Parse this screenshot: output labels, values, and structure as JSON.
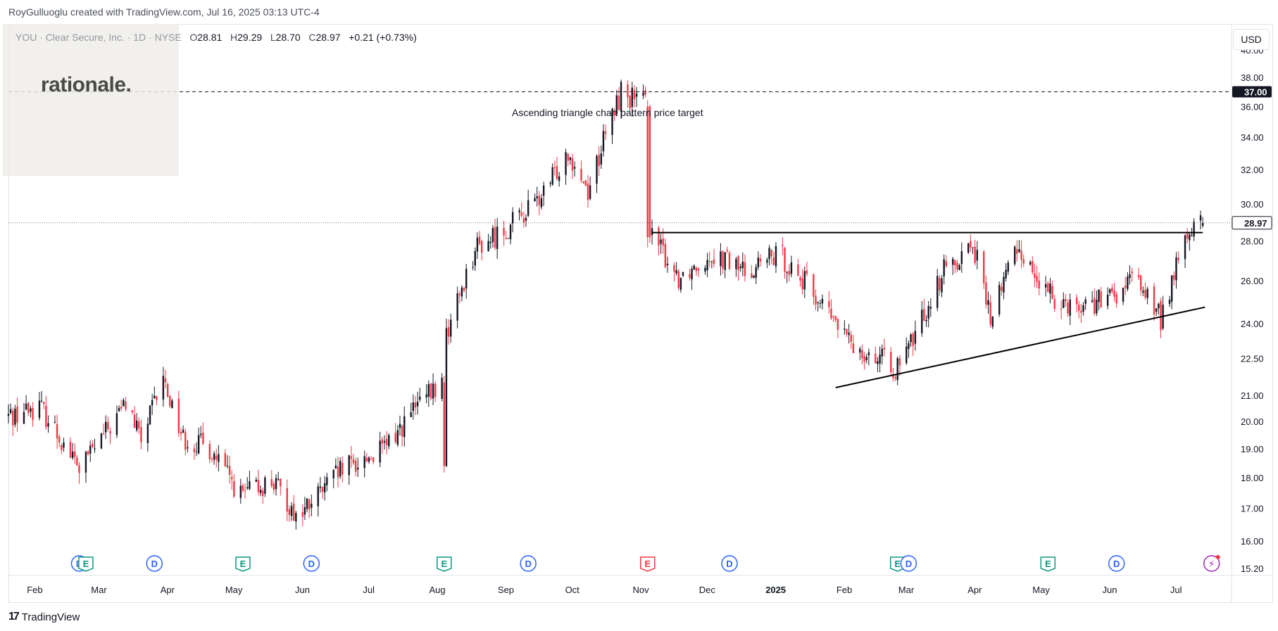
{
  "creator_text": "RoyGulluoglu created with TradingView.com, Jul 16, 2025 03:13 UTC-4",
  "legend": {
    "symbol_line": "YOU · Clear Secure, Inc. · 1D · NYSE",
    "open_label": "O",
    "open": "28.81",
    "high_label": "H",
    "high": "29.29",
    "low_label": "L",
    "low": "28.70",
    "close_label": "C",
    "close": "28.97",
    "change": "+0.21 (+0.73%)"
  },
  "logo_text": "rationale.",
  "brand_text": "TradingView",
  "currency_button": "USD",
  "annotation": "Ascending triangle chart pattern price target",
  "colors": {
    "up": "#131722",
    "down": "#f23645",
    "event_blue": "#2962ff",
    "event_green": "#089981",
    "event_red": "#f23645",
    "event_purple": "#9c27b0"
  },
  "chart_data": {
    "type": "candlestick",
    "y_scale": "log",
    "ylim": [
      15.0,
      42.0
    ],
    "y_ticks": [
      "40.00",
      "38.00",
      "36.00",
      "34.00",
      "32.00",
      "30.00",
      "28.00",
      "26.00",
      "24.00",
      "22.50",
      "21.00",
      "20.00",
      "19.00",
      "18.00",
      "17.00",
      "16.00",
      "15.20"
    ],
    "x_ticks": [
      "Feb",
      "Mar",
      "Apr",
      "May",
      "Jun",
      "Jul",
      "Aug",
      "Sep",
      "Oct",
      "Nov",
      "Dec",
      "2025",
      "Feb",
      "Mar",
      "Apr",
      "May",
      "Jun",
      "Jul"
    ],
    "x_tick_bold": [
      false,
      false,
      false,
      false,
      false,
      false,
      false,
      false,
      false,
      false,
      false,
      true,
      false,
      false,
      false,
      false,
      false,
      false
    ],
    "x_range": [
      "2024-01-22",
      "2025-07-28"
    ],
    "price_labels": [
      {
        "value": "37.00",
        "style": "dark"
      },
      {
        "value": "28.97",
        "style": "outline"
      }
    ],
    "key_points": [
      {
        "date": "2024-01-22",
        "close": 20.2
      },
      {
        "date": "2024-02-05",
        "close": 20.6
      },
      {
        "date": "2024-02-23",
        "close": 18.3
      },
      {
        "date": "2024-03-08",
        "close": 19.8
      },
      {
        "date": "2024-03-15",
        "close": 20.7
      },
      {
        "date": "2024-03-22",
        "close": 19.3
      },
      {
        "date": "2024-04-01",
        "close": 21.6
      },
      {
        "date": "2024-04-10",
        "close": 19.4
      },
      {
        "date": "2024-04-22",
        "close": 19.0
      },
      {
        "date": "2024-05-06",
        "close": 17.4
      },
      {
        "date": "2024-05-20",
        "close": 17.9
      },
      {
        "date": "2024-06-01",
        "close": 16.7
      },
      {
        "date": "2024-06-20",
        "close": 18.2
      },
      {
        "date": "2024-07-10",
        "close": 19.0
      },
      {
        "date": "2024-07-25",
        "close": 20.6
      },
      {
        "date": "2024-08-06",
        "close": 21.5
      },
      {
        "date": "2024-08-07",
        "close": 18.4
      },
      {
        "date": "2024-08-08",
        "close": 23.8
      },
      {
        "date": "2024-08-20",
        "close": 27.6
      },
      {
        "date": "2024-09-05",
        "close": 28.8
      },
      {
        "date": "2024-09-20",
        "close": 30.5
      },
      {
        "date": "2024-10-01",
        "close": 33.2
      },
      {
        "date": "2024-10-10",
        "close": 30.8
      },
      {
        "date": "2024-10-25",
        "close": 37.0
      },
      {
        "date": "2024-11-06",
        "close": 36.0
      },
      {
        "date": "2024-11-08",
        "close": 28.2
      },
      {
        "date": "2024-11-20",
        "close": 26.2
      },
      {
        "date": "2024-12-05",
        "close": 27.4
      },
      {
        "date": "2024-12-20",
        "close": 26.5
      },
      {
        "date": "2025-01-05",
        "close": 27.3
      },
      {
        "date": "2025-01-20",
        "close": 25.4
      },
      {
        "date": "2025-02-05",
        "close": 23.2
      },
      {
        "date": "2025-02-28",
        "close": 22.0
      },
      {
        "date": "2025-03-20",
        "close": 26.5
      },
      {
        "date": "2025-04-02",
        "close": 27.9
      },
      {
        "date": "2025-04-10",
        "close": 24.2
      },
      {
        "date": "2025-04-22",
        "close": 27.8
      },
      {
        "date": "2025-05-05",
        "close": 25.4
      },
      {
        "date": "2025-05-20",
        "close": 24.8
      },
      {
        "date": "2025-06-05",
        "close": 25.2
      },
      {
        "date": "2025-06-15",
        "close": 26.2
      },
      {
        "date": "2025-06-26",
        "close": 24.2
      },
      {
        "date": "2025-07-08",
        "close": 28.4
      },
      {
        "date": "2025-07-15",
        "close": 28.97
      }
    ],
    "lines": [
      {
        "kind": "dashed_horizontal",
        "price": 37.0,
        "from": "2024-01-22",
        "to": "2025-07-28"
      },
      {
        "kind": "dotted_horizontal",
        "price": 28.97,
        "from": "2024-01-22",
        "to": "2025-07-28"
      },
      {
        "kind": "resistance",
        "price": 28.45,
        "from": "2024-11-08",
        "to": "2025-07-15"
      },
      {
        "kind": "support",
        "from_date": "2025-01-30",
        "from_price": 21.3,
        "to_date": "2025-07-16",
        "to_price": 24.75
      }
    ],
    "events": [
      {
        "date": "2024-02-23",
        "label": "D",
        "color": "event_blue"
      },
      {
        "date": "2024-02-26",
        "label": "E",
        "color": "event_green"
      },
      {
        "date": "2024-03-28",
        "label": "D",
        "color": "event_blue"
      },
      {
        "date": "2024-05-07",
        "label": "E",
        "color": "event_green"
      },
      {
        "date": "2024-06-07",
        "label": "D",
        "color": "event_blue"
      },
      {
        "date": "2024-08-06",
        "label": "E",
        "color": "event_green"
      },
      {
        "date": "2024-09-13",
        "label": "D",
        "color": "event_blue"
      },
      {
        "date": "2024-11-06",
        "label": "E",
        "color": "event_red"
      },
      {
        "date": "2024-12-13",
        "label": "D",
        "color": "event_blue"
      },
      {
        "date": "2025-02-27",
        "label": "E",
        "color": "event_green"
      },
      {
        "date": "2025-03-04",
        "label": "D",
        "color": "event_blue"
      },
      {
        "date": "2025-05-06",
        "label": "E",
        "color": "event_green"
      },
      {
        "date": "2025-06-06",
        "label": "D",
        "color": "event_blue"
      },
      {
        "date": "2025-07-19",
        "label": "⚡",
        "color": "event_purple"
      }
    ]
  }
}
